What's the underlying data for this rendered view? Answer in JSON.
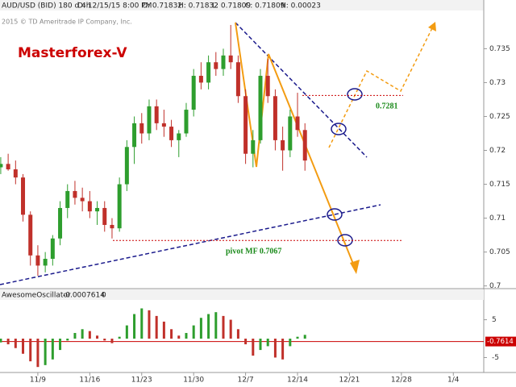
{
  "header": {
    "symbol": "AUD/USD (BID) 180 d 4h",
    "date": "D: 12/15/15 8:00 PM",
    "open": "O: 0.71832",
    "high": "H: 0.71832",
    "low": "L: 0.71809",
    "close": "C: 0.71809",
    "net": "N: 0.00023",
    "copyright": "2015 © TD Ameritrade IP Company, Inc.",
    "brand": "Masterforex-V"
  },
  "chart_data": [
    {
      "type": "candlestick",
      "x": [
        4,
        5,
        6,
        7,
        8,
        9,
        10,
        11,
        12,
        13,
        14,
        15,
        16,
        17,
        18,
        19,
        20,
        21,
        22,
        23,
        24,
        25,
        26,
        27,
        28,
        29,
        30,
        31,
        32,
        33,
        34,
        35,
        36,
        37,
        38,
        39,
        40,
        41,
        42,
        43,
        44,
        45
      ],
      "open": [
        0.7175,
        0.718,
        0.7172,
        0.716,
        0.7105,
        0.7045,
        0.703,
        0.704,
        0.707,
        0.7115,
        0.714,
        0.713,
        0.7125,
        0.711,
        0.7115,
        0.709,
        0.7085,
        0.715,
        0.7205,
        0.724,
        0.7225,
        0.7265,
        0.724,
        0.7235,
        0.7215,
        0.7225,
        0.726,
        0.731,
        0.73,
        0.733,
        0.732,
        0.734,
        0.733,
        0.728,
        0.7195,
        0.7215,
        0.731,
        0.728,
        0.7215,
        0.72,
        0.725,
        0.723
      ],
      "high": [
        0.719,
        0.7195,
        0.7185,
        0.7165,
        0.711,
        0.706,
        0.705,
        0.7075,
        0.7125,
        0.715,
        0.7155,
        0.7145,
        0.714,
        0.7125,
        0.7125,
        0.71,
        0.716,
        0.7215,
        0.725,
        0.7255,
        0.7275,
        0.7275,
        0.726,
        0.7245,
        0.723,
        0.727,
        0.732,
        0.733,
        0.734,
        0.7345,
        0.735,
        0.7385,
        0.734,
        0.729,
        0.723,
        0.732,
        0.7335,
        0.729,
        0.7235,
        0.726,
        0.7285,
        0.724
      ],
      "low": [
        0.7165,
        0.717,
        0.715,
        0.7095,
        0.703,
        0.7015,
        0.702,
        0.703,
        0.706,
        0.71,
        0.712,
        0.711,
        0.71,
        0.709,
        0.708,
        0.707,
        0.708,
        0.714,
        0.718,
        0.721,
        0.7215,
        0.723,
        0.722,
        0.7205,
        0.719,
        0.722,
        0.725,
        0.729,
        0.729,
        0.731,
        0.731,
        0.732,
        0.727,
        0.718,
        0.7175,
        0.721,
        0.727,
        0.72,
        0.717,
        0.719,
        0.722,
        0.717
      ],
      "close": [
        0.718,
        0.7172,
        0.716,
        0.7105,
        0.7045,
        0.703,
        0.704,
        0.707,
        0.7115,
        0.714,
        0.713,
        0.7125,
        0.711,
        0.7115,
        0.709,
        0.7085,
        0.715,
        0.7205,
        0.724,
        0.7225,
        0.7265,
        0.724,
        0.7235,
        0.7215,
        0.7225,
        0.726,
        0.731,
        0.73,
        0.733,
        0.732,
        0.734,
        0.733,
        0.728,
        0.7195,
        0.7215,
        0.731,
        0.728,
        0.7215,
        0.72,
        0.725,
        0.723,
        0.7185
      ],
      "up_color": "#2e9e2e",
      "down_color": "#c0302a",
      "xlim": [
        3.9,
        69.1
      ],
      "ylim": [
        0.6996,
        0.7404
      ],
      "yticks": [
        0.7,
        0.705,
        0.71,
        0.715,
        0.72,
        0.725,
        0.73,
        0.735
      ],
      "annotations": [
        {
          "value": 0.7281,
          "label": "0.7281"
        },
        {
          "value": 0.7067,
          "label": "pivot MF 0.7067"
        }
      ],
      "annotation_line_color": "#cc0000",
      "annotation_text_color": "#1a8a1a"
    },
    {
      "type": "bar",
      "title": "AwesomeOscillator",
      "value_label": "-0.0007614",
      "param": "0",
      "x": [
        4,
        5,
        6,
        7,
        8,
        9,
        10,
        11,
        12,
        13,
        14,
        15,
        16,
        17,
        18,
        19,
        20,
        21,
        22,
        23,
        24,
        25,
        26,
        27,
        28,
        29,
        30,
        31,
        32,
        33,
        34,
        35,
        36,
        37,
        38,
        39,
        40,
        41,
        42,
        43,
        44,
        45
      ],
      "values": [
        -1,
        -1.5,
        -2.5,
        -4,
        -6,
        -7.5,
        -7,
        -5.5,
        -3,
        -0.5,
        1.5,
        2.5,
        2,
        0.8,
        -0.5,
        -1.2,
        0.5,
        3.5,
        6.5,
        8,
        7.5,
        6,
        4.5,
        2.5,
        0.8,
        1.5,
        3.5,
        5.5,
        6.5,
        7,
        6,
        5,
        2.5,
        -1.5,
        -4.5,
        -3,
        -2,
        -5,
        -5.5,
        -2,
        0.5,
        1
      ],
      "up_color": "#2e9e2e",
      "down_color": "#c0302a",
      "last": -0.7614,
      "last_color": "#cc0000",
      "xlim": [
        3.9,
        69.1
      ],
      "ylim": [
        -8.1,
        9.6
      ],
      "yticks": [
        5,
        -5
      ],
      "xticks": [
        {
          "value": 9,
          "label": "11/9"
        },
        {
          "value": 16,
          "label": "11/16"
        },
        {
          "value": 23,
          "label": "11/23"
        },
        {
          "value": 30,
          "label": "11/30"
        },
        {
          "value": 37,
          "label": "12/7"
        },
        {
          "value": 44,
          "label": "12/14"
        },
        {
          "value": 51,
          "label": "12/21"
        },
        {
          "value": 58,
          "label": "12/28"
        },
        {
          "value": 65,
          "label": "1/4"
        }
      ]
    }
  ]
}
